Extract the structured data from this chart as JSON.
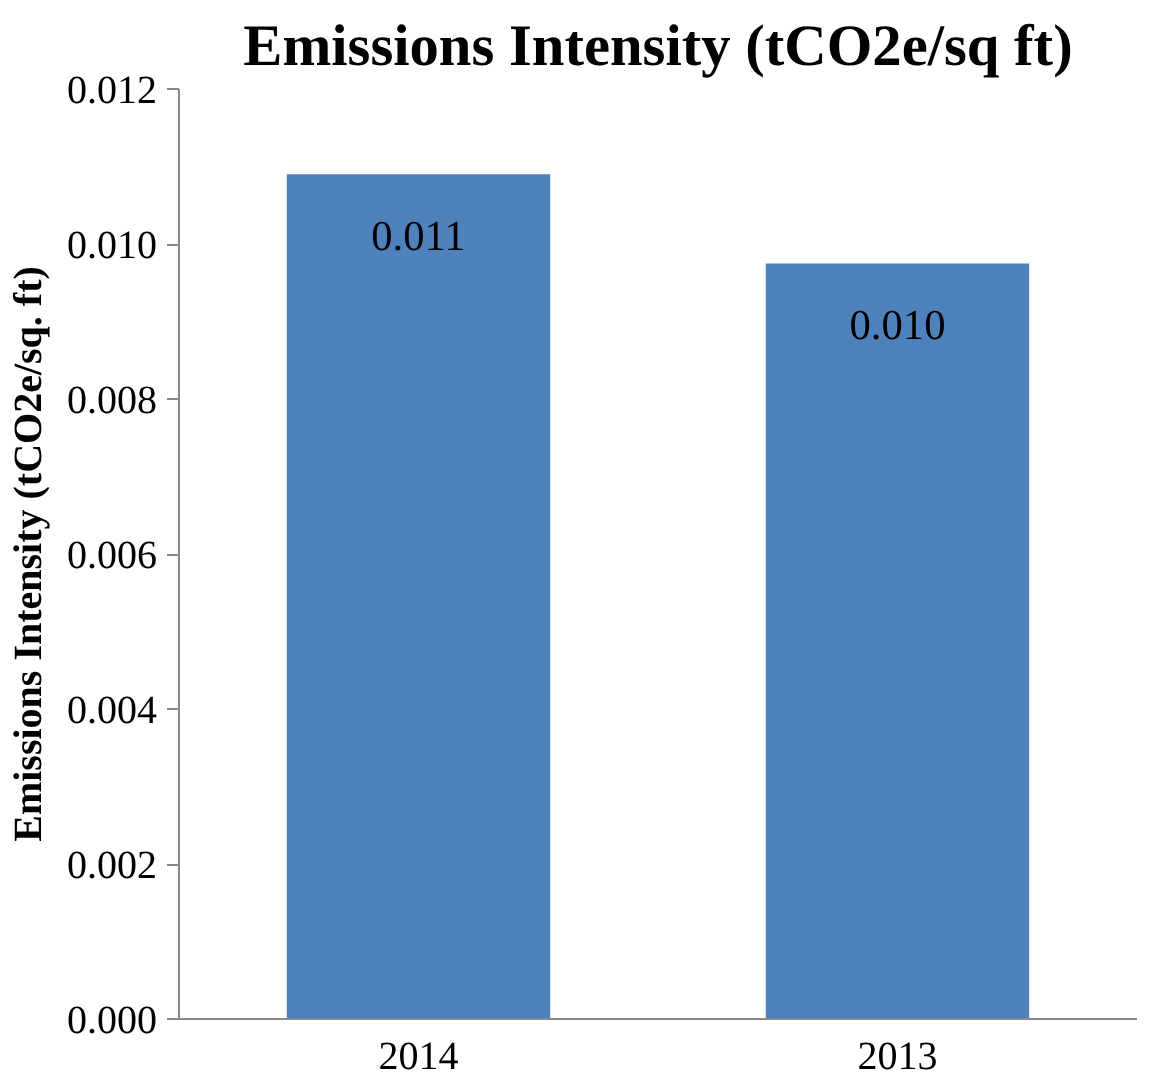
{
  "chart_data": {
    "type": "bar",
    "title": "Emissions Intensity (tCO2e/sq ft)",
    "ylabel": "Emissions Intensity (tCO2e/sq. ft)",
    "categories": [
      "2014",
      "2013"
    ],
    "values": [
      0.0109,
      0.00975
    ],
    "value_labels": [
      "0.011",
      "0.010"
    ],
    "color": "#4f81bd",
    "ylim": [
      0,
      0.012
    ],
    "yticks": [
      {
        "value": 0,
        "label": "0.000"
      },
      {
        "value": 0.002,
        "label": "0.002"
      },
      {
        "value": 0.004,
        "label": "0.004"
      },
      {
        "value": 0.006,
        "label": "0.006"
      },
      {
        "value": 0.008,
        "label": "0.008"
      },
      {
        "value": 0.01,
        "label": "0.010"
      },
      {
        "value": 0.012,
        "label": "0.012"
      }
    ],
    "grid": false
  }
}
